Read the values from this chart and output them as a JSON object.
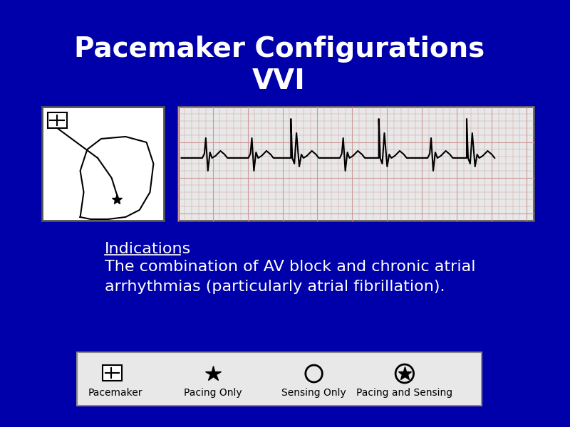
{
  "title_line1": "Pacemaker Configurations",
  "title_line2": "VVI",
  "title_color": "#FFFFFF",
  "title_fontsize": 28,
  "background_color": "#0000AA",
  "indications_label": "Indications",
  "indications_text": "The combination of AV block and chronic atrial\narrhythmias (particularly atrial fibrillation).",
  "text_color": "#FFFFFF",
  "text_fontsize": 16,
  "legend_items": [
    "Pacemaker",
    "Pacing Only",
    "Sensing Only",
    "Pacing and Sensing"
  ],
  "legend_bg": "#E8E8E8",
  "legend_border": "#888888"
}
